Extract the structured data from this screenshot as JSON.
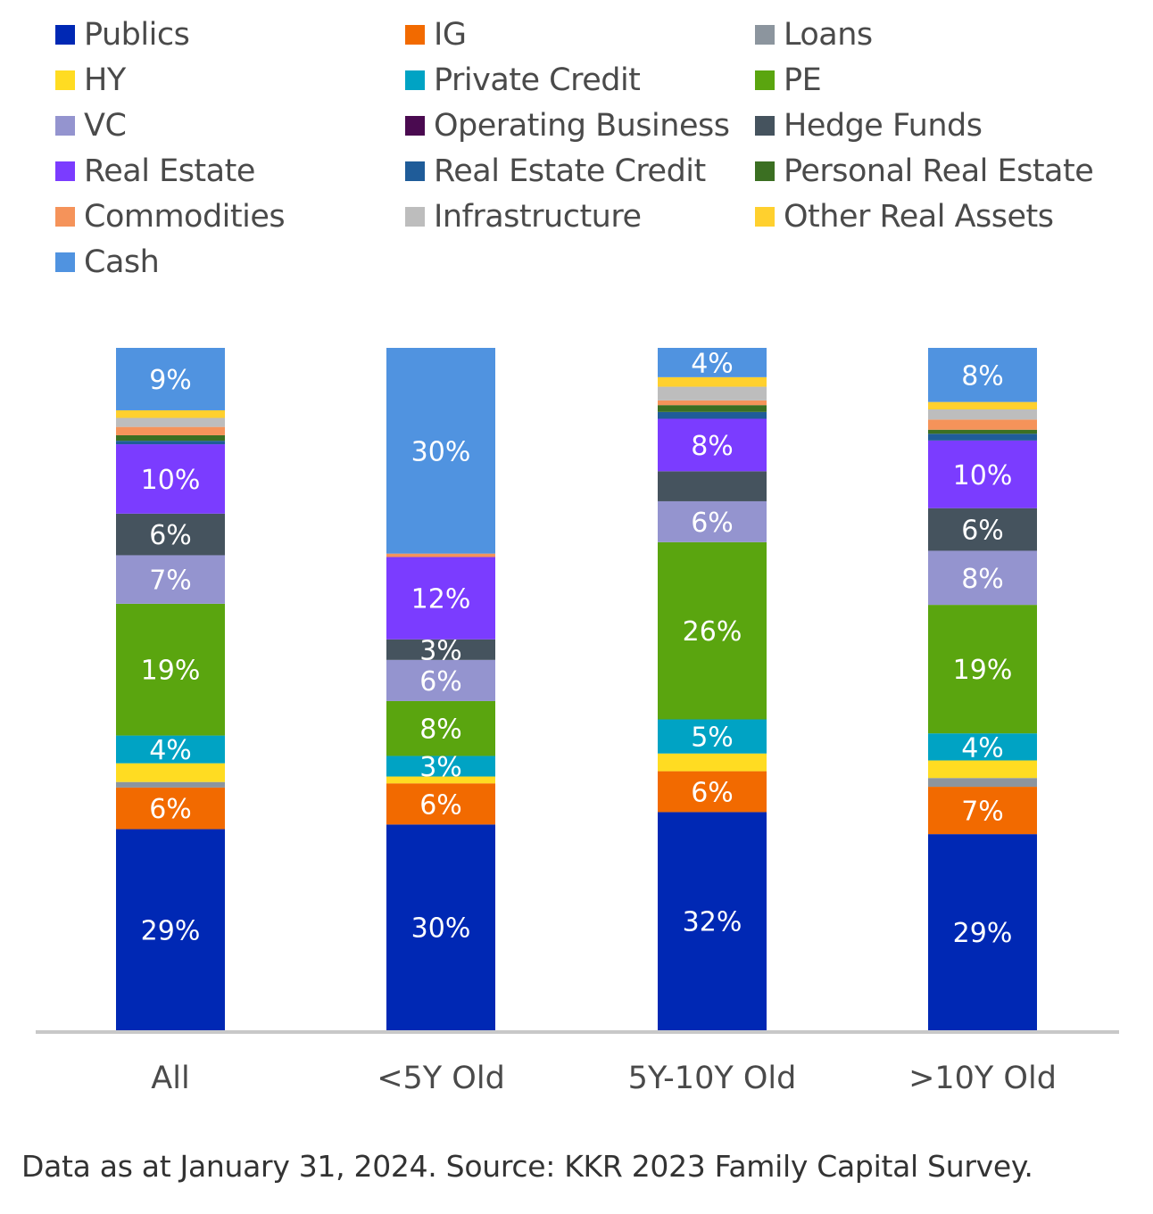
{
  "chart_data": {
    "type": "bar",
    "stacked": true,
    "categories": [
      "All",
      "<5Y Old",
      "5Y-10Y Old",
      ">10Y Old"
    ],
    "series": [
      {
        "name": "Publics",
        "color": "#0028b4",
        "values": [
          29,
          30,
          32,
          29
        ],
        "labels": [
          "29%",
          "30%",
          "32%",
          "29%"
        ]
      },
      {
        "name": "IG",
        "color": "#f26a00",
        "values": [
          6,
          6,
          6,
          7
        ],
        "labels": [
          "6%",
          "6%",
          "6%",
          "7%"
        ]
      },
      {
        "name": "Loans",
        "color": "#8c959e",
        "values": [
          0.8,
          0,
          0,
          1.3
        ],
        "labels": [
          "",
          "",
          "",
          ""
        ]
      },
      {
        "name": "HY",
        "color": "#ffdc22",
        "values": [
          2.7,
          1,
          2.6,
          2.6
        ],
        "labels": [
          "",
          "",
          "",
          ""
        ]
      },
      {
        "name": "Private Credit",
        "color": "#00a3c4",
        "values": [
          4,
          3,
          5,
          4
        ],
        "labels": [
          "4%",
          "3%",
          "5%",
          "4%"
        ]
      },
      {
        "name": "PE",
        "color": "#5aa50f",
        "values": [
          19,
          8,
          26,
          19
        ],
        "labels": [
          "19%",
          "8%",
          "26%",
          "19%"
        ]
      },
      {
        "name": "VC",
        "color": "#9494cf",
        "values": [
          7,
          6,
          6,
          8
        ],
        "labels": [
          "7%",
          "6%",
          "6%",
          "8%"
        ]
      },
      {
        "name": "Operating Business",
        "color": "#4a0a50",
        "values": [
          0,
          0,
          0,
          0
        ],
        "labels": [
          "",
          "",
          "",
          ""
        ]
      },
      {
        "name": "Hedge Funds",
        "color": "#45535e",
        "values": [
          6,
          3,
          4.4,
          6.3
        ],
        "labels": [
          "6%",
          "3%",
          "",
          "6%"
        ]
      },
      {
        "name": "Real Estate",
        "color": "#7b3cff",
        "values": [
          10,
          12,
          7.7,
          10
        ],
        "labels": [
          "10%",
          "12%",
          "8%",
          "10%"
        ]
      },
      {
        "name": "Real Estate Credit",
        "color": "#1f5c99",
        "values": [
          0.5,
          0,
          1,
          1
        ],
        "labels": [
          "",
          "",
          "",
          ""
        ]
      },
      {
        "name": "Personal Real Estate",
        "color": "#3b6f22",
        "values": [
          0.8,
          0,
          1,
          0.6
        ],
        "labels": [
          "",
          "",
          "",
          ""
        ]
      },
      {
        "name": "Commodities",
        "color": "#f5935a",
        "values": [
          1.2,
          0.5,
          0.7,
          1.5
        ],
        "labels": [
          "",
          "",
          "",
          ""
        ]
      },
      {
        "name": "Infrastructure",
        "color": "#bdbdbd",
        "values": [
          1.3,
          0,
          2,
          1.5
        ],
        "labels": [
          "",
          "",
          "",
          ""
        ]
      },
      {
        "name": "Other Real Assets",
        "color": "#ffd02e",
        "values": [
          1.1,
          0,
          1.4,
          1.1
        ],
        "labels": [
          "",
          "",
          "",
          ""
        ]
      },
      {
        "name": "Cash",
        "color": "#5093e0",
        "values": [
          9,
          30,
          4.3,
          8
        ],
        "labels": [
          "9%",
          "30%",
          "4%",
          "8%"
        ]
      }
    ],
    "legend_position": "top",
    "axis_color": "#c8c8c8",
    "grid": false
  },
  "footnote": "Data as at January 31, 2024. Source: KKR 2023 Family Capital Survey."
}
